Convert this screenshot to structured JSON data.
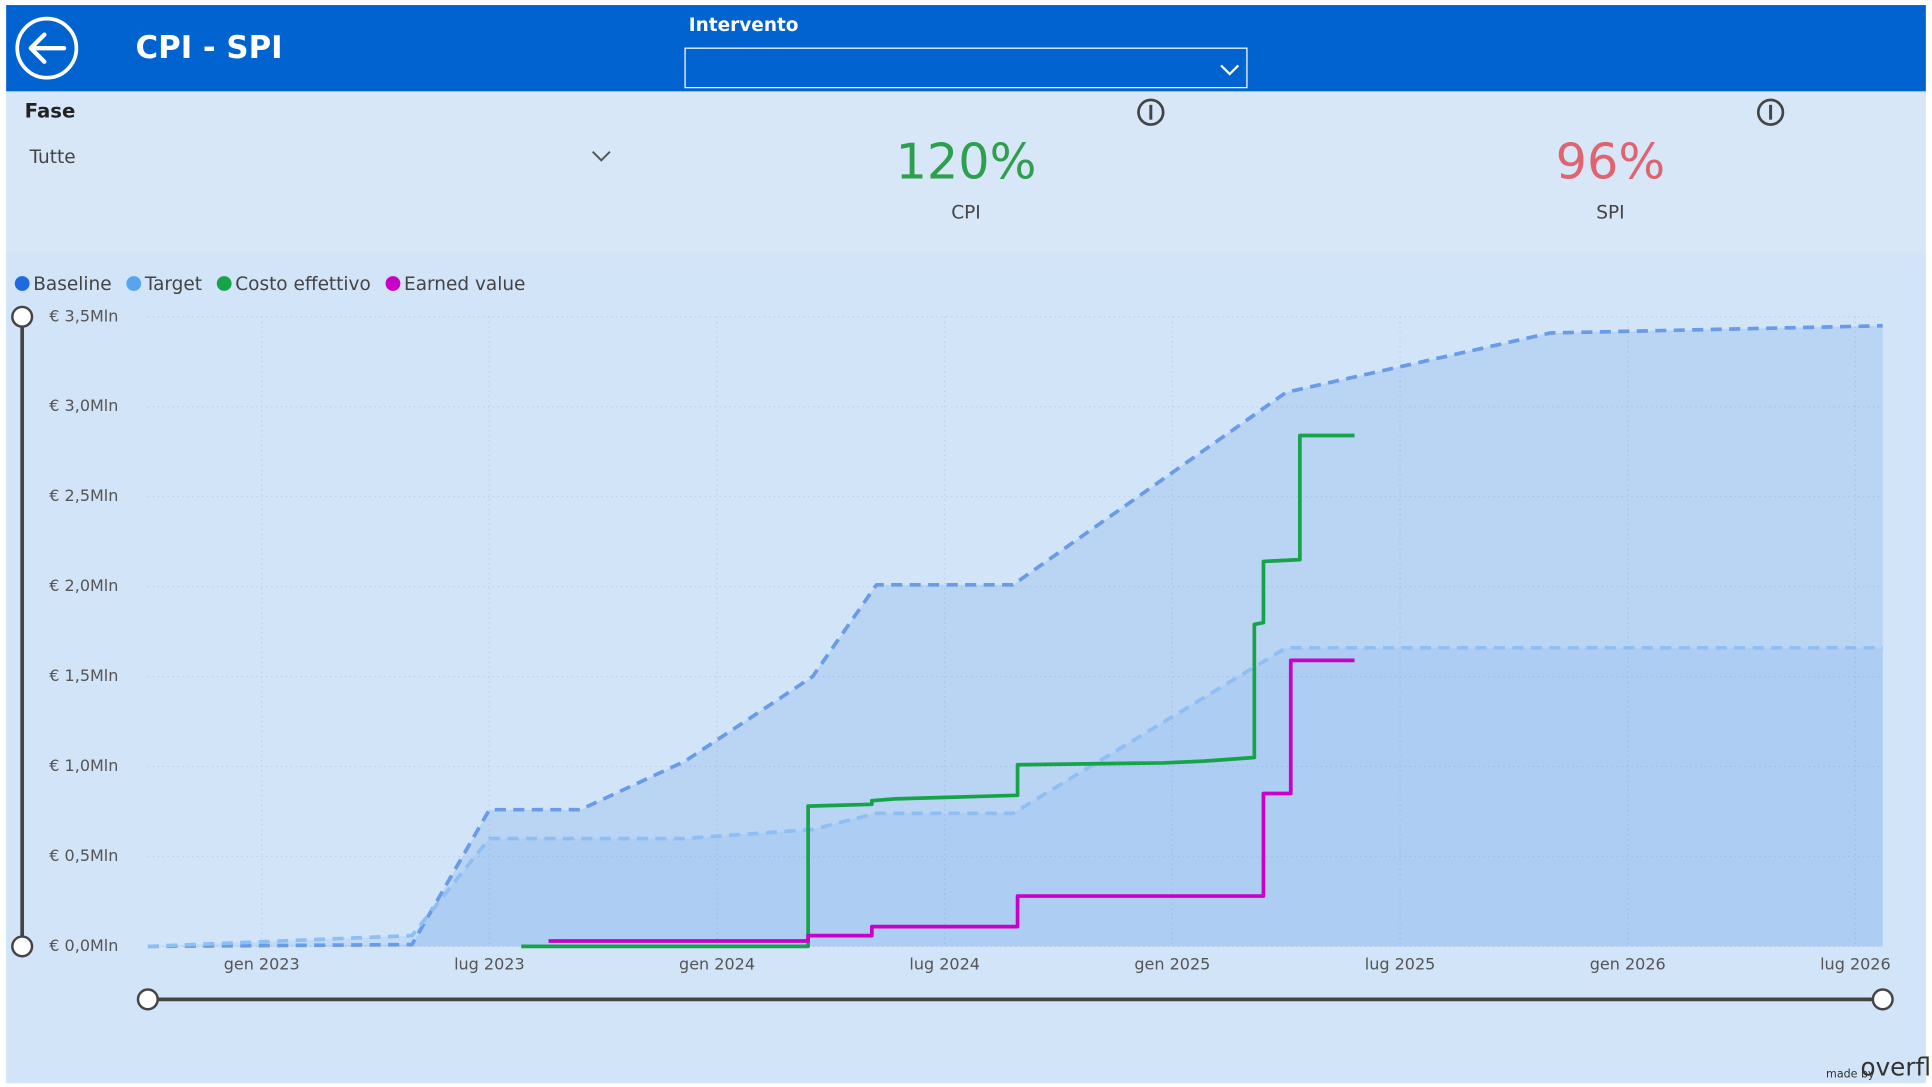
{
  "header": {
    "title": "CPI - SPI",
    "dropdown_label": "Intervento"
  },
  "filter": {
    "label": "Fase",
    "value": "Tutte"
  },
  "kpis": [
    {
      "value": "120%",
      "label": "CPI",
      "color": "#2e9e4f"
    },
    {
      "value": "96%",
      "label": "SPI",
      "color": "#e06470"
    }
  ],
  "chart_data": {
    "type": "line",
    "xlim": [
      2022.75,
      2026.56
    ],
    "ylim": [
      0,
      3.5
    ],
    "xticks": [
      {
        "value": 2023,
        "label": "gen 2023"
      },
      {
        "value": 2023.5,
        "label": "lug 2023"
      },
      {
        "value": 2024,
        "label": "gen 2024"
      },
      {
        "value": 2024.5,
        "label": "lug 2024"
      },
      {
        "value": 2025,
        "label": "gen 2025"
      },
      {
        "value": 2025.5,
        "label": "lug 2025"
      },
      {
        "value": 2026,
        "label": "gen 2026"
      },
      {
        "value": 2026.5,
        "label": "lug 2026"
      }
    ],
    "yticks": [
      {
        "value": 0,
        "label": "€ 0,0Mln"
      },
      {
        "value": 0.5,
        "label": "€ 0,5Mln"
      },
      {
        "value": 1,
        "label": "€ 1,0Mln"
      },
      {
        "value": 1.5,
        "label": "€ 1,5Mln"
      },
      {
        "value": 2,
        "label": "€ 2,0Mln"
      },
      {
        "value": 2.5,
        "label": "€ 2,5Mln"
      },
      {
        "value": 3,
        "label": "€ 3,0Mln"
      },
      {
        "value": 3.5,
        "label": "€ 3,5Mln"
      }
    ],
    "grid": true,
    "series": [
      {
        "name": "Baseline",
        "color": "#1f6ae0",
        "line_color": "#6a9be6",
        "dashed": true,
        "area": true,
        "x": [
          2022.75,
          2023.33,
          2023.5,
          2023.7,
          2023.93,
          2024.21,
          2024.35,
          2024.65,
          2025.25,
          2025.83,
          2026.56
        ],
        "values": [
          0,
          0.01,
          0.76,
          0.76,
          1.03,
          1.5,
          2.01,
          2.01,
          3.08,
          3.41,
          3.45
        ]
      },
      {
        "name": "Target",
        "color": "#58a4ef",
        "line_color": "#8fbff2",
        "dashed": true,
        "area": true,
        "x": [
          2022.75,
          2023.33,
          2023.5,
          2023.93,
          2024.21,
          2024.35,
          2024.65,
          2025.25,
          2026.56
        ],
        "values": [
          0,
          0.06,
          0.6,
          0.6,
          0.65,
          0.74,
          0.74,
          1.66,
          1.66
        ]
      },
      {
        "name": "Costo effettivo",
        "color": "#17a34a",
        "line_color": "#17a34a",
        "dashed": false,
        "area": false,
        "x": [
          2023.57,
          2024.2,
          2024.2,
          2024.34,
          2024.34,
          2024.39,
          2024.66,
          2024.66,
          2024.98,
          2025.07,
          2025.18,
          2025.18,
          2025.2,
          2025.2,
          2025.28,
          2025.28,
          2025.4
        ],
        "values": [
          0,
          0,
          0.78,
          0.79,
          0.81,
          0.82,
          0.84,
          1.01,
          1.02,
          1.03,
          1.05,
          1.79,
          1.8,
          2.14,
          2.15,
          2.84,
          2.84
        ]
      },
      {
        "name": "Earned value",
        "color": "#c800c8",
        "line_color": "#c800c8",
        "dashed": false,
        "area": false,
        "x": [
          2023.63,
          2024.2,
          2024.2,
          2024.34,
          2024.34,
          2024.66,
          2024.66,
          2025.2,
          2025.2,
          2025.26,
          2025.26,
          2025.4
        ],
        "values": [
          0.03,
          0.03,
          0.06,
          0.06,
          0.11,
          0.11,
          0.28,
          0.28,
          0.85,
          0.85,
          1.59,
          1.59
        ]
      }
    ]
  },
  "footer": {
    "made_by": "made by",
    "brand": "overflo"
  }
}
